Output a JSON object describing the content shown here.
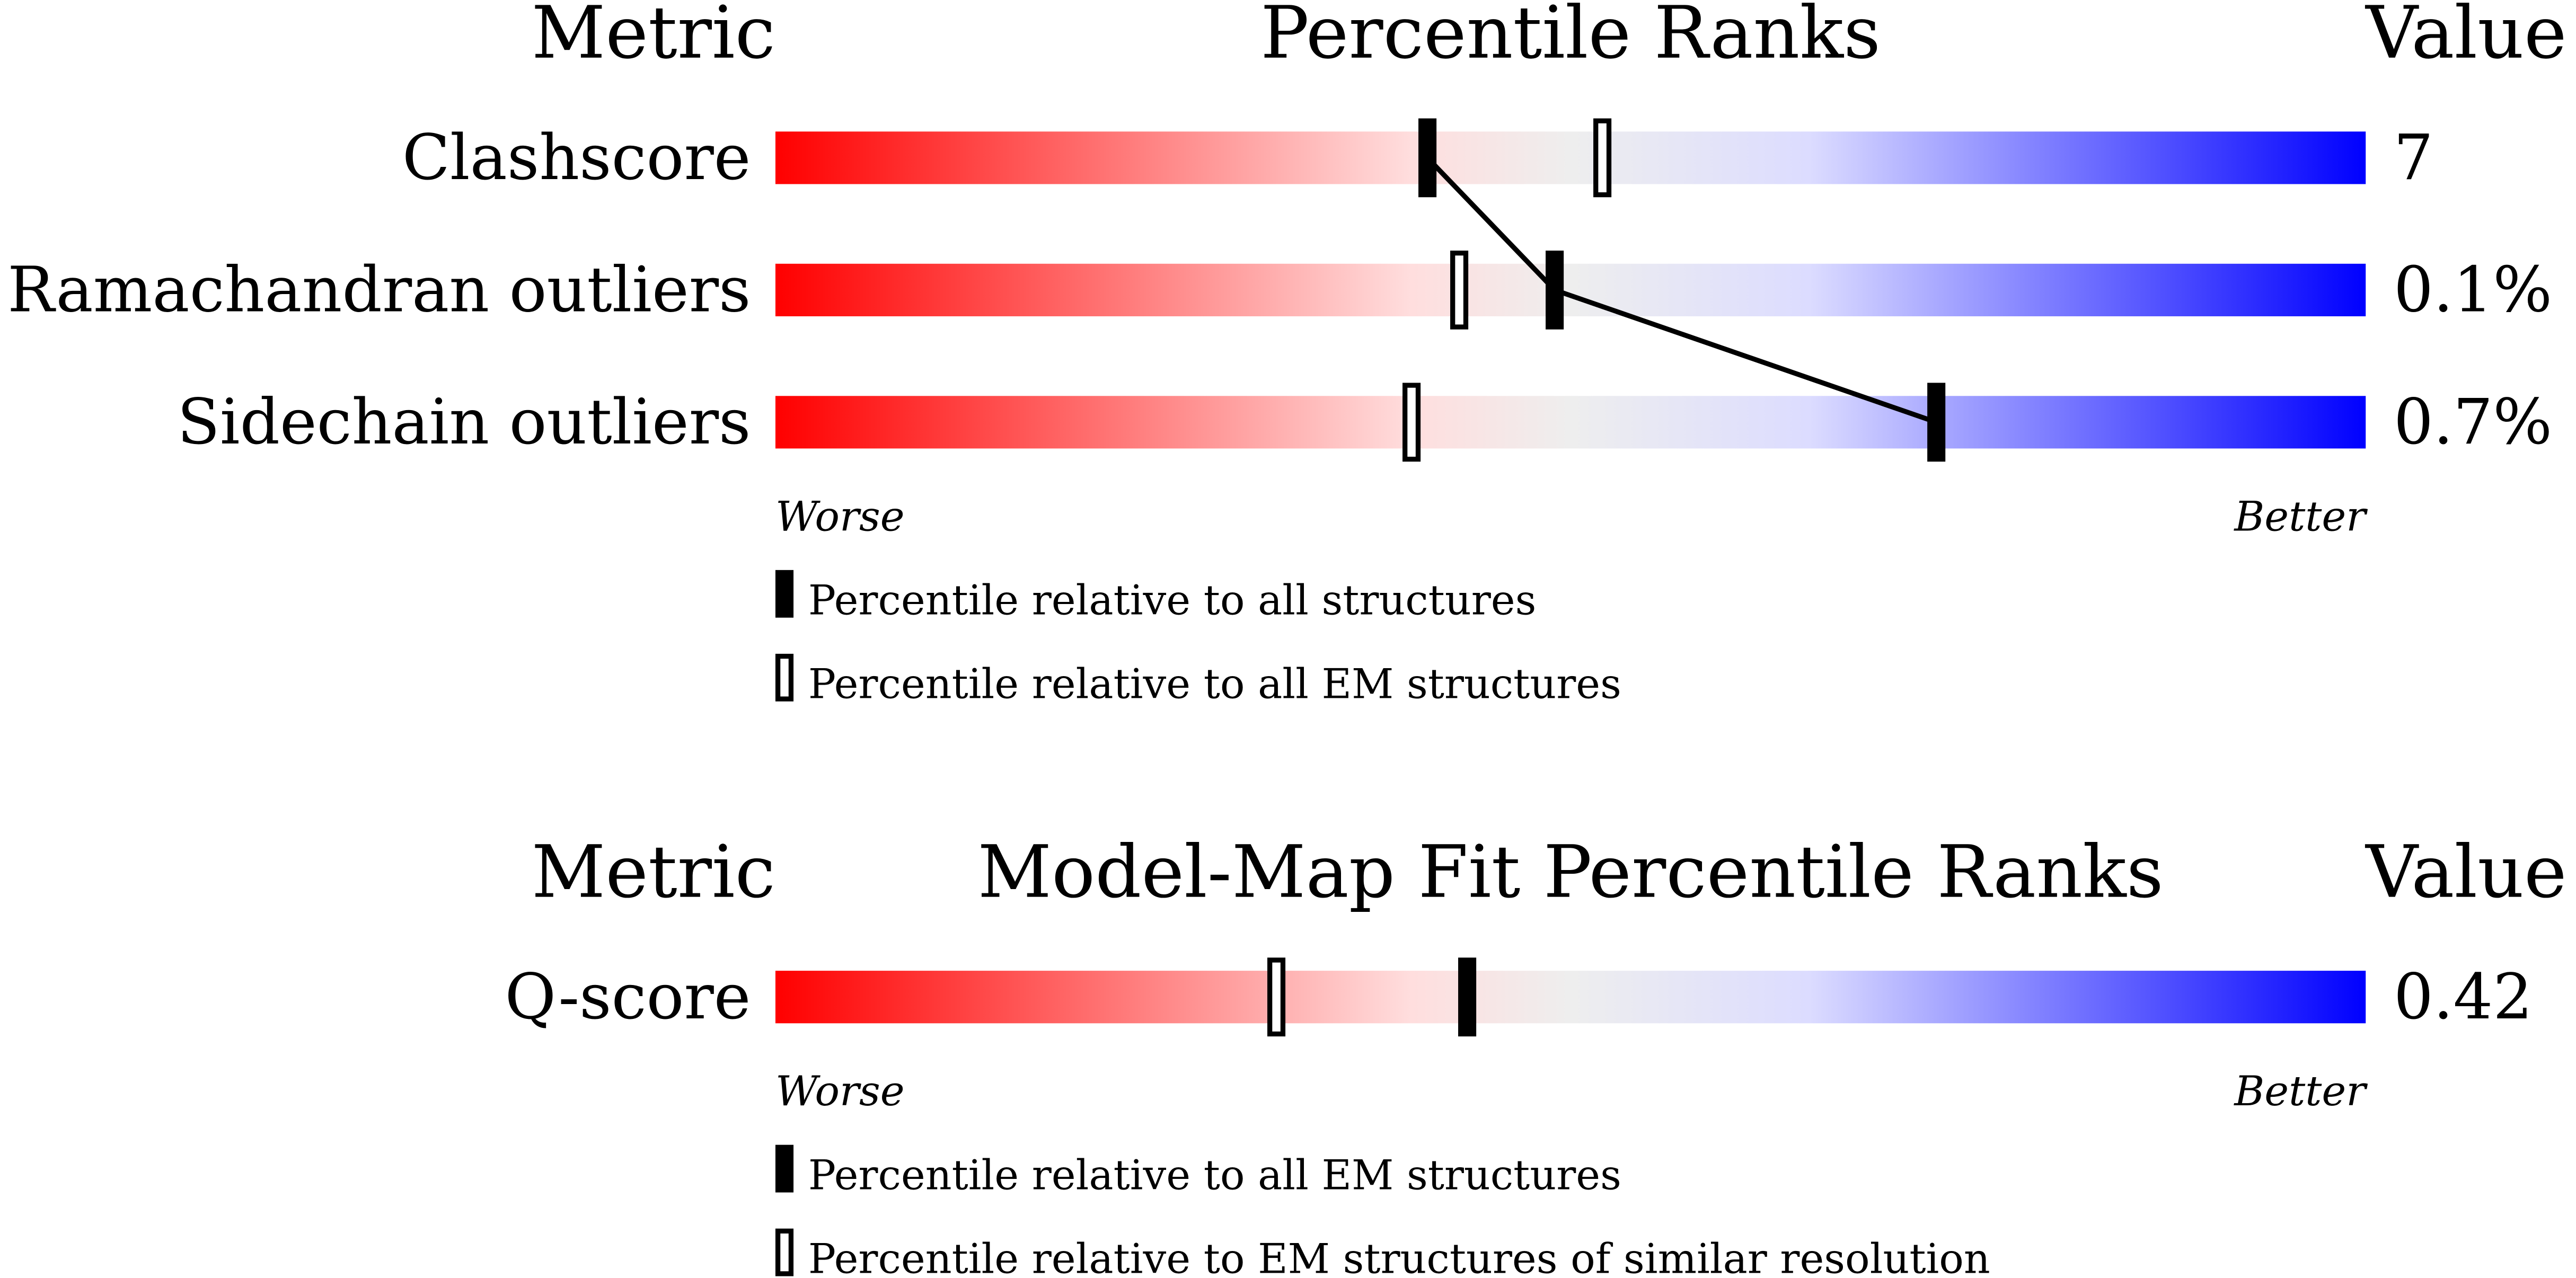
{
  "chart_data": [
    {
      "type": "percentile-slider",
      "metric_header": "Metric",
      "title": "Percentile Ranks",
      "value_header": "Value",
      "categories": [
        "Clashscore",
        "Ramachandran outliers",
        "Sidechain outliers"
      ],
      "metric_values": [
        "7",
        "0.1%",
        "0.7%"
      ],
      "series": [
        {
          "name": "Percentile relative to all structures",
          "marker": "filled",
          "values": [
            41,
            49,
            73
          ]
        },
        {
          "name": "Percentile relative to all EM structures",
          "marker": "open",
          "values": [
            52,
            43,
            40
          ]
        }
      ],
      "xlim": [
        0,
        100
      ],
      "worse_label": "Worse",
      "better_label": "Better"
    },
    {
      "type": "percentile-slider",
      "metric_header": "Metric",
      "title": "Model-Map Fit Percentile Ranks",
      "value_header": "Value",
      "categories": [
        "Q-score"
      ],
      "metric_values": [
        "0.42"
      ],
      "series": [
        {
          "name": "Percentile relative to all EM structures",
          "marker": "filled",
          "values": [
            43.5
          ]
        },
        {
          "name": "Percentile relative to EM structures of similar resolution",
          "marker": "open",
          "values": [
            31.5
          ]
        }
      ],
      "xlim": [
        0,
        100
      ],
      "worse_label": "Worse",
      "better_label": "Better"
    }
  ]
}
